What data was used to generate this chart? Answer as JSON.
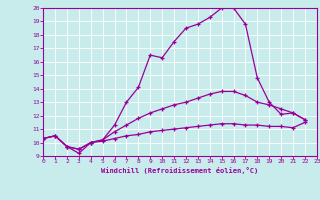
{
  "xlabel": "Windchill (Refroidissement éolien,°C)",
  "bg_color": "#c8ecec",
  "line_color": "#990099",
  "grid_color": "#aad4d4",
  "xlim": [
    0,
    23
  ],
  "ylim": [
    9,
    20
  ],
  "xticks": [
    0,
    1,
    2,
    3,
    4,
    5,
    6,
    7,
    8,
    9,
    10,
    11,
    12,
    13,
    14,
    15,
    16,
    17,
    18,
    19,
    20,
    21,
    22,
    23
  ],
  "yticks": [
    9,
    10,
    11,
    12,
    13,
    14,
    15,
    16,
    17,
    18,
    19,
    20
  ],
  "line1_x": [
    0,
    1,
    2,
    3,
    4,
    5,
    6,
    7,
    8,
    9,
    10,
    11,
    12,
    13,
    14,
    15,
    16,
    17,
    18,
    19,
    20,
    21,
    22
  ],
  "line1_y": [
    10.3,
    10.5,
    9.7,
    9.2,
    10.0,
    10.2,
    11.3,
    13.0,
    14.1,
    16.5,
    16.3,
    17.5,
    18.5,
    18.8,
    19.3,
    20.0,
    20.0,
    18.8,
    14.8,
    13.0,
    12.1,
    12.2,
    11.7
  ],
  "line2_x": [
    0,
    1,
    2,
    3,
    4,
    5,
    6,
    7,
    8,
    9,
    10,
    11,
    12,
    13,
    14,
    15,
    16,
    17,
    18,
    19,
    20,
    21,
    22
  ],
  "line2_y": [
    10.3,
    10.5,
    9.7,
    9.5,
    10.0,
    10.2,
    10.8,
    11.3,
    11.8,
    12.2,
    12.5,
    12.8,
    13.0,
    13.3,
    13.6,
    13.8,
    13.8,
    13.5,
    13.0,
    12.8,
    12.5,
    12.2,
    11.7
  ],
  "line3_x": [
    0,
    1,
    2,
    3,
    4,
    5,
    6,
    7,
    8,
    9,
    10,
    11,
    12,
    13,
    14,
    15,
    16,
    17,
    18,
    19,
    20,
    21,
    22
  ],
  "line3_y": [
    10.3,
    10.5,
    9.7,
    9.5,
    10.0,
    10.1,
    10.3,
    10.5,
    10.6,
    10.8,
    10.9,
    11.0,
    11.1,
    11.2,
    11.3,
    11.4,
    11.4,
    11.3,
    11.3,
    11.2,
    11.2,
    11.1,
    11.5
  ]
}
